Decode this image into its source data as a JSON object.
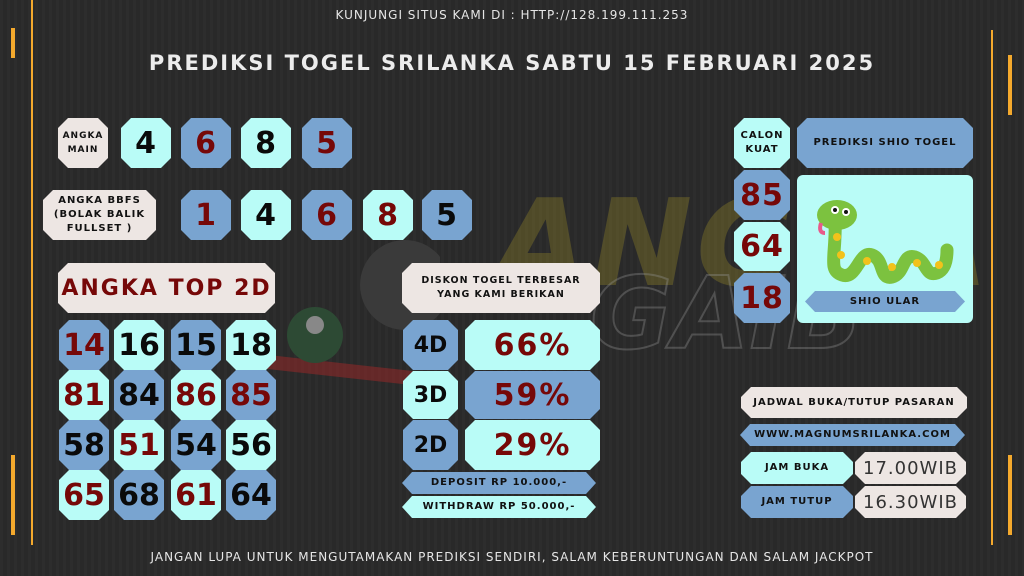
{
  "header": {
    "site_notice": "KUNJUNGI SITUS KAMI DI : HTTP://128.199.111.253",
    "title": "PREDIKSI TOGEL SRILANKA SABTU 15 FEBRUARI 2025"
  },
  "watermark": "ANGKA GAIB",
  "angka_main": {
    "label_line1": "ANGKA",
    "label_line2": "MAIN",
    "digits": [
      "4",
      "6",
      "8",
      "5"
    ]
  },
  "angka_bbfs": {
    "label_line1": "ANGKA BBFS",
    "label_line2": "(BOLAK BALIK",
    "label_line3": "FULLSET )",
    "digits": [
      "1",
      "4",
      "6",
      "8",
      "5"
    ]
  },
  "top2d": {
    "label": "ANGKA TOP 2D",
    "rows": [
      [
        "14",
        "16",
        "15",
        "18"
      ],
      [
        "81",
        "84",
        "86",
        "85"
      ],
      [
        "58",
        "51",
        "54",
        "56"
      ],
      [
        "65",
        "68",
        "61",
        "64"
      ]
    ]
  },
  "diskon": {
    "label_line1": "DISKON TOGEL TERBESAR",
    "label_line2": "YANG KAMI BERIKAN",
    "rows": [
      {
        "game": "4D",
        "value": "66%"
      },
      {
        "game": "3D",
        "value": "59%"
      },
      {
        "game": "2D",
        "value": "29%"
      }
    ],
    "deposit": "DEPOSIT RP 10.000,-",
    "withdraw": "WITHDRAW RP 50.000,-"
  },
  "calon_kuat": {
    "label_line1": "CALON",
    "label_line2": "KUAT",
    "numbers": [
      "85",
      "64",
      "18"
    ]
  },
  "shio": {
    "header": "PREDIKSI SHIO TOGEL",
    "name": "SHIO ULAR",
    "icon": "snake-icon"
  },
  "jadwal": {
    "title": "JADWAL BUKA/TUTUP PASARAN",
    "website": "WWW.MAGNUMSRILANKA.COM",
    "buka_label": "JAM BUKA",
    "buka_value": "17.00WIB",
    "tutup_label": "JAM TUTUP",
    "tutup_value": "16.30WIB"
  },
  "footer": "JANGAN LUPA UNTUK MENGUTAMAKAN PREDIKSI SENDIRI, SALAM KEBERUNTUNGAN DAN SALAM JACKPOT",
  "colors": {
    "cyan": "#b9fcf7",
    "blue": "#79a4d0",
    "beige": "#ede6e3",
    "red": "#760808",
    "accent": "#f4a92d",
    "background": "#2a2a2a"
  }
}
